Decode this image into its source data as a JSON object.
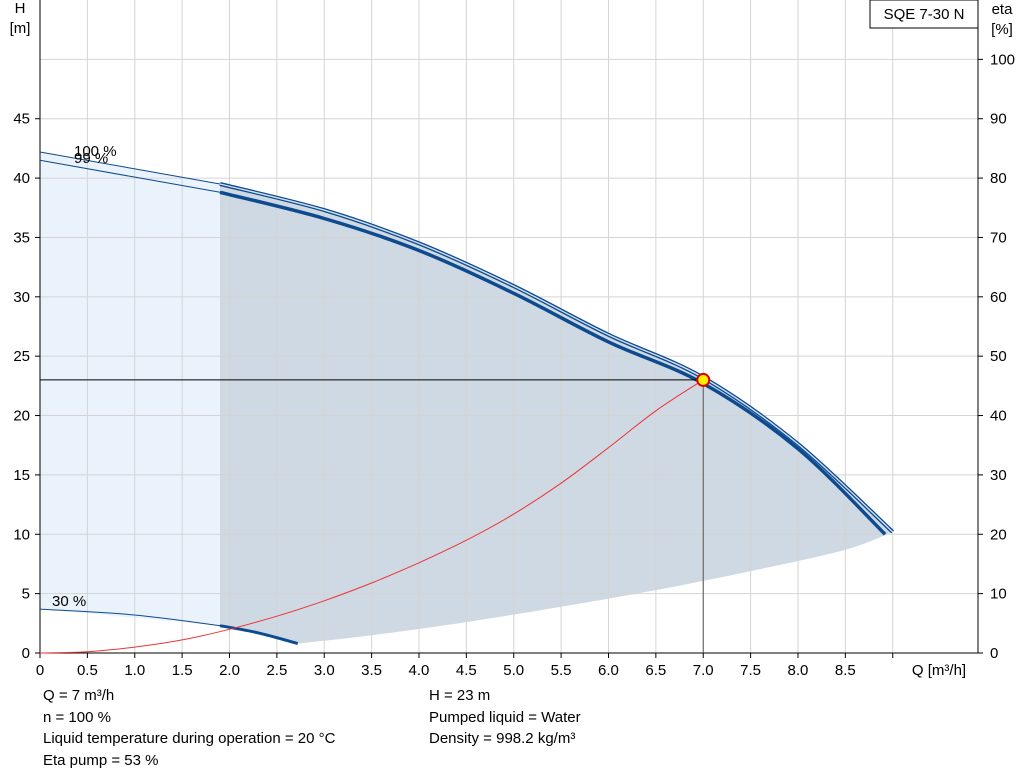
{
  "chart_data": {
    "type": "line",
    "title": "SQE 7-30 N",
    "xlabel": "Q [m³/h]",
    "ylabel_left": [
      "H",
      "[m]"
    ],
    "ylabel_right": [
      "eta",
      "[%]"
    ],
    "x_ticks": [
      "0",
      "0.5",
      "1.0",
      "1.5",
      "2.0",
      "2.5",
      "3.0",
      "3.5",
      "4.0",
      "4.5",
      "5.0",
      "5.5",
      "6.0",
      "6.5",
      "7.0",
      "7.5",
      "8.0",
      "8.5"
    ],
    "y_left_ticks": [
      "0",
      "5",
      "10",
      "15",
      "20",
      "25",
      "30",
      "35",
      "40",
      "45"
    ],
    "y_right_ticks": [
      "0",
      "10",
      "20",
      "30",
      "40",
      "50",
      "60",
      "70",
      "80",
      "90",
      "100"
    ],
    "xlim": [
      0,
      9.9
    ],
    "ylim_left": [
      0,
      55
    ],
    "ylim_right": [
      0,
      110
    ],
    "grid": true,
    "series": [
      {
        "name": "100 %",
        "x": [
          0,
          1.9,
          3,
          4,
          5,
          6,
          7,
          8,
          9.0
        ],
        "y": [
          42.2,
          39.5,
          37.3,
          34.5,
          30.9,
          26.8,
          23.2,
          17.6,
          10.2
        ]
      },
      {
        "name": "99 %",
        "x": [
          0,
          1.9,
          3,
          4,
          5,
          6,
          7,
          8,
          8.92
        ],
        "y": [
          41.5,
          38.8,
          36.6,
          33.9,
          30.3,
          26.2,
          22.7,
          17.2,
          10.0
        ]
      },
      {
        "name": "30 %",
        "x": [
          0,
          1.0,
          1.9,
          2.3,
          2.72
        ],
        "y": [
          3.7,
          3.2,
          2.3,
          1.7,
          0.8
        ]
      },
      {
        "name": "",
        "x": [
          0,
          0.5,
          1,
          1.5,
          2,
          2.5,
          3,
          3.5,
          4,
          4.5,
          5,
          5.5,
          6,
          6.5,
          7.0
        ],
        "y": [
          0,
          0.1,
          0.5,
          1.1,
          2.0,
          3.1,
          4.4,
          5.9,
          7.6,
          9.5,
          11.7,
          14.3,
          17.3,
          20.4,
          23.0
        ]
      }
    ],
    "operating_range_min_q": 1.9,
    "lower_envelope": {
      "x": [
        2.72,
        3.5,
        4.5,
        5.5,
        6.5,
        7.5,
        8.5,
        9.0
      ],
      "y": [
        0.8,
        1.5,
        2.6,
        3.9,
        5.3,
        6.9,
        8.7,
        10.2
      ]
    },
    "duty_point": {
      "q": 7.0,
      "h": 23.0
    },
    "colors": {
      "curve": "#0d4a8f",
      "curve_highlight": "#cfe0f2",
      "system": "#ee3333",
      "area": "#ced9e3",
      "area_light": "#eaf3fc",
      "grid": "#d4d4d4",
      "marker_fill": "#ffee00",
      "marker_stroke": "#dd0000"
    }
  },
  "info": {
    "q": "Q = 7 m³/h",
    "n": "n = 100 %",
    "temp": "Liquid temperature during operation = 20 °C",
    "eta": "Eta pump = 53 %",
    "h": "H = 23 m",
    "liquid": "Pumped liquid = Water",
    "density": "Density = 998.2 kg/m³"
  }
}
